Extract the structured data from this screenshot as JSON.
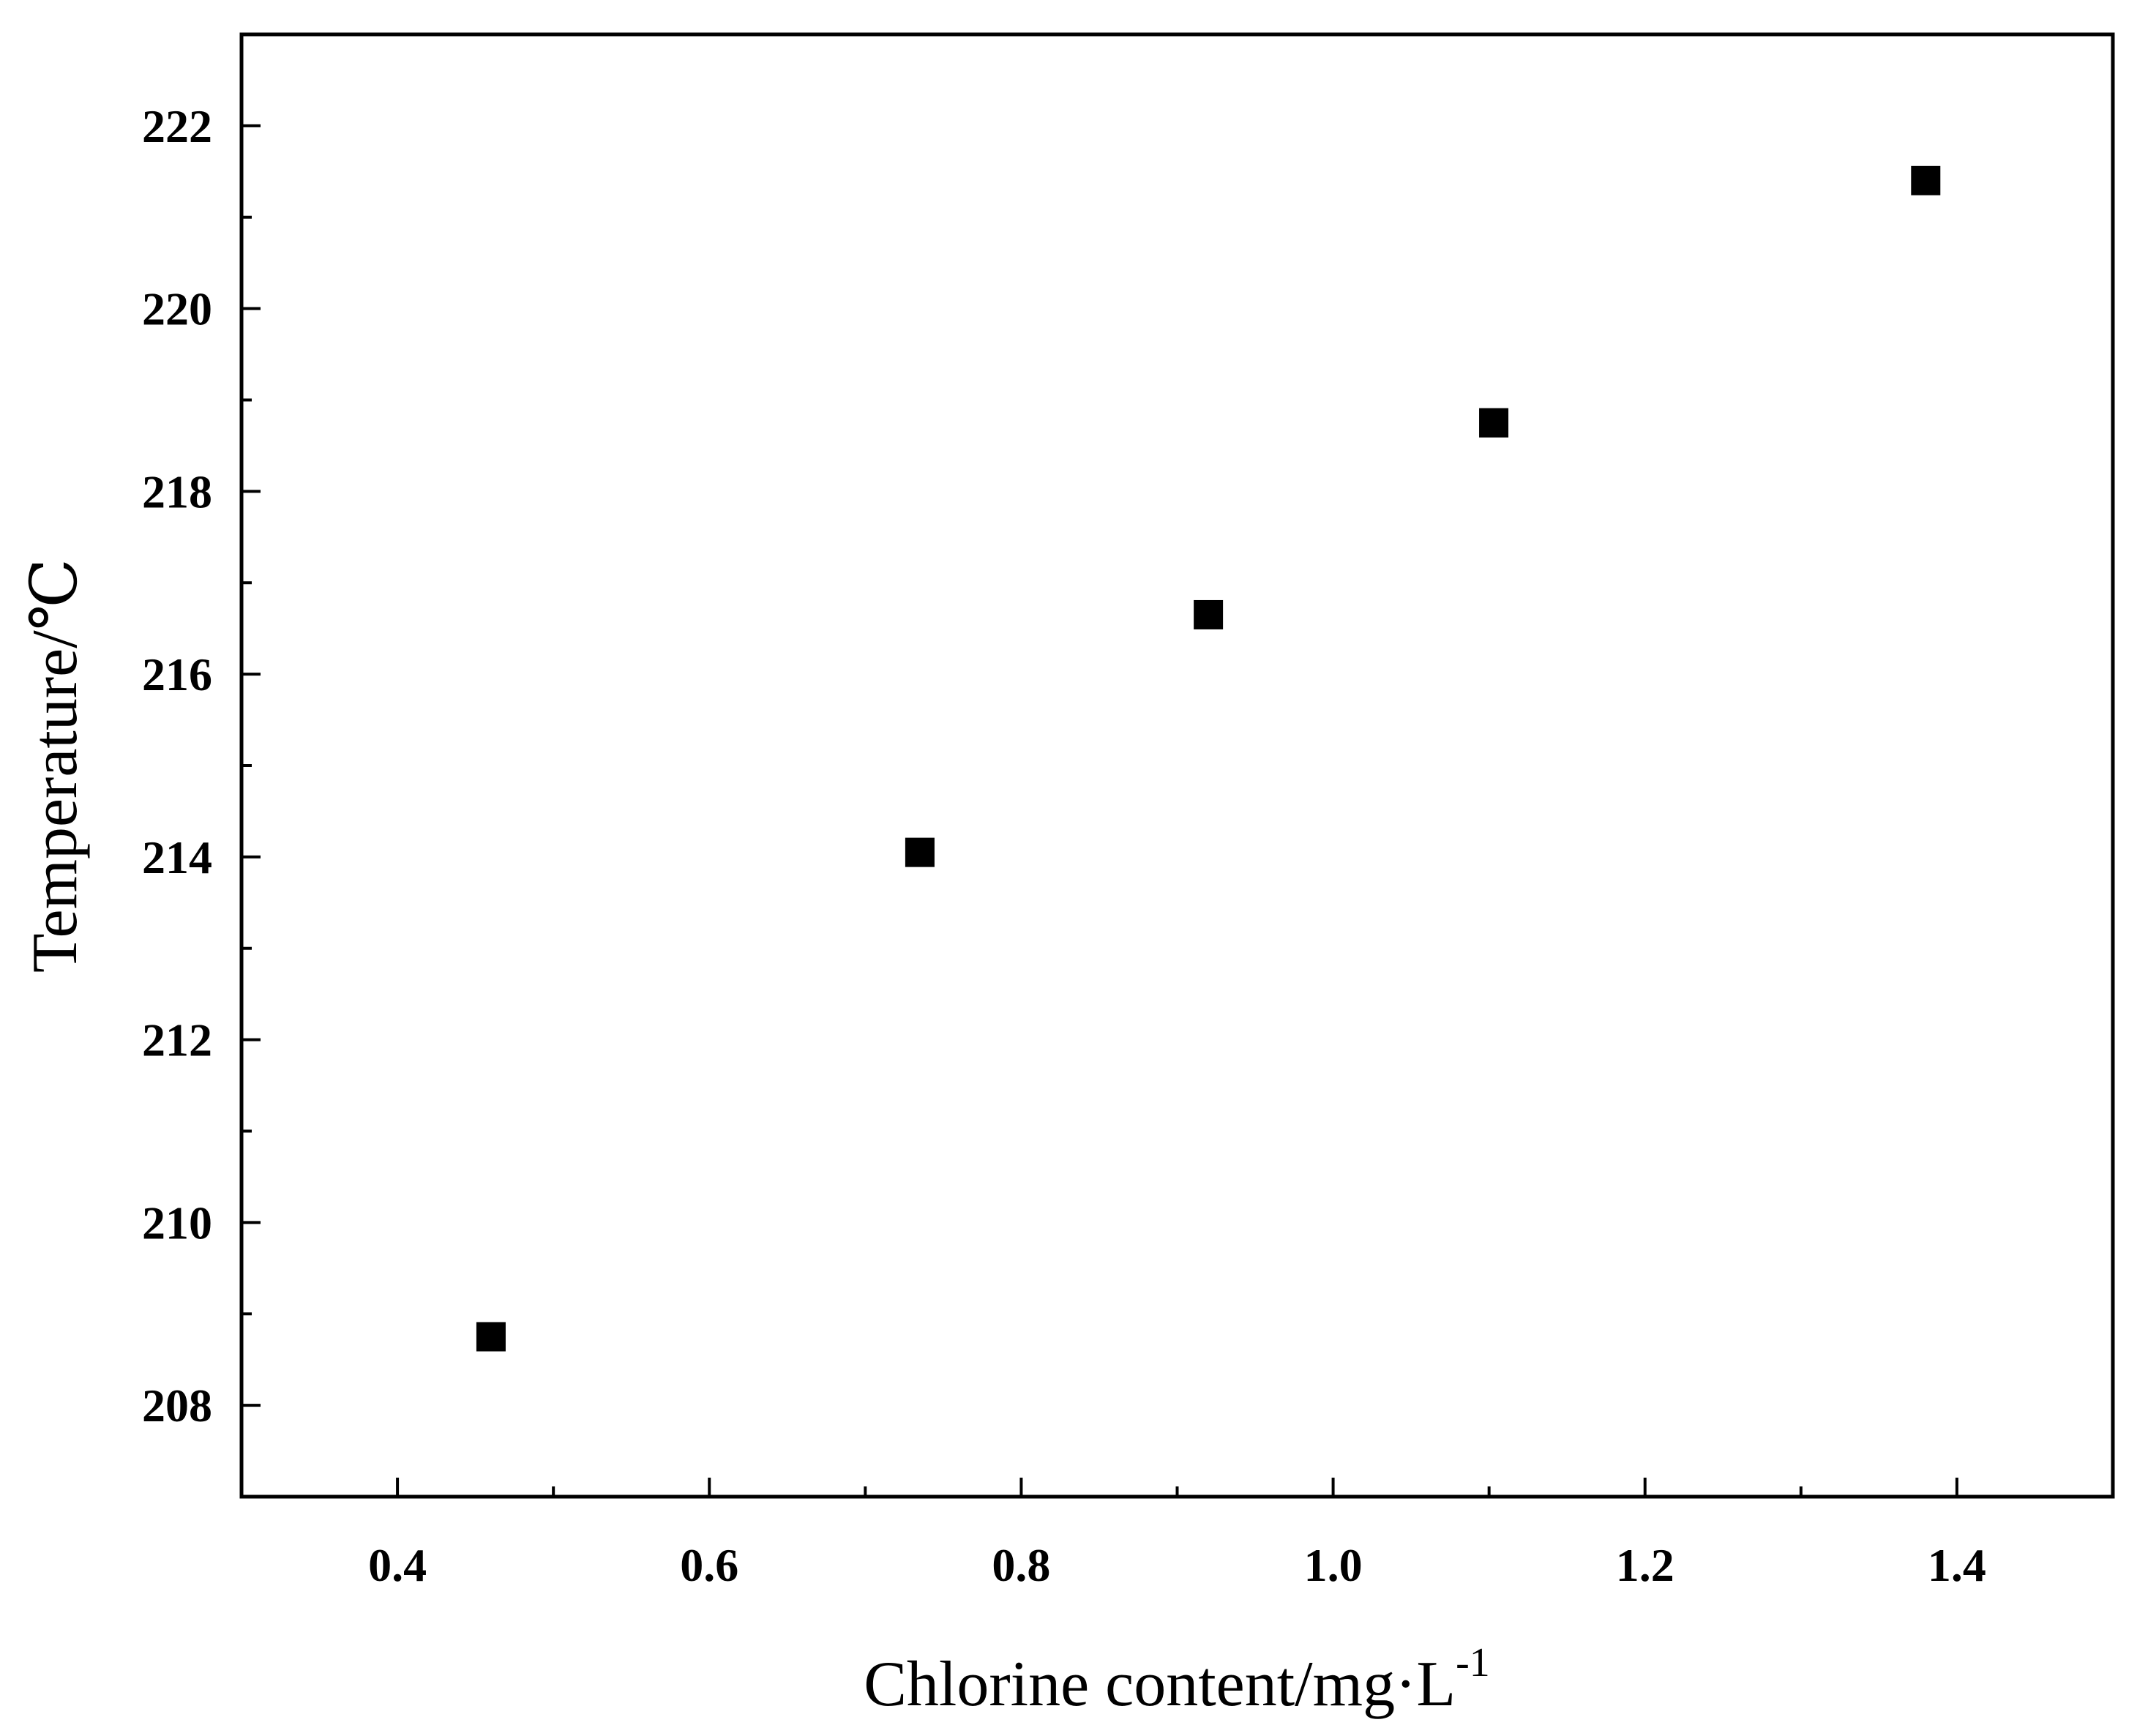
{
  "chart_data": {
    "type": "scatter",
    "title": "",
    "xlabel": "Chlorine content/mg·L",
    "xlabel_superscript": "-1",
    "ylabel": "Temperature/℃",
    "xlim": [
      0.3,
      1.5
    ],
    "ylim": [
      207,
      223
    ],
    "xticks": [
      "0.4",
      "0.6",
      "0.8",
      "1.0",
      "1.2",
      "1.4"
    ],
    "yticks": [
      "208",
      "210",
      "212",
      "214",
      "216",
      "218",
      "220",
      "222"
    ],
    "grid": false,
    "marker": "square",
    "marker_color": "#000000",
    "series": [
      {
        "points": [
          {
            "x": 0.46,
            "y": 208.75
          },
          {
            "x": 0.735,
            "y": 214.05
          },
          {
            "x": 0.92,
            "y": 216.65
          },
          {
            "x": 1.103,
            "y": 218.75
          },
          {
            "x": 1.38,
            "y": 221.4
          }
        ]
      }
    ]
  }
}
